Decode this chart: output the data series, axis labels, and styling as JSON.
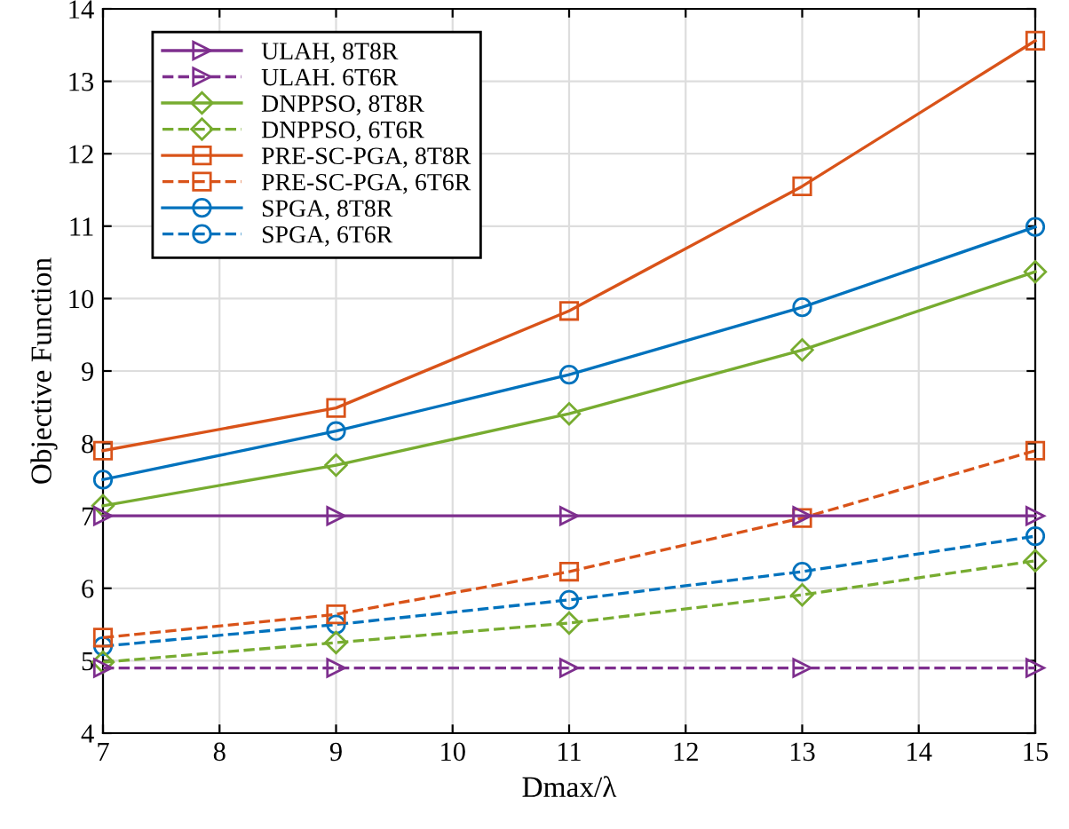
{
  "chart_data": {
    "type": "line",
    "xlabel": "Dmax/λ",
    "ylabel": "Objective Function",
    "x": [
      7,
      9,
      11,
      13,
      15
    ],
    "xlim": [
      7,
      15
    ],
    "xticks": [
      7,
      8,
      9,
      10,
      11,
      12,
      13,
      14,
      15
    ],
    "ylim": [
      4,
      14
    ],
    "yticks": [
      4,
      5,
      6,
      7,
      8,
      9,
      10,
      11,
      12,
      13,
      14
    ],
    "grid": true,
    "legend": "top left",
    "series": [
      {
        "name": "ULAH, 8T8R",
        "color": "#7e2f8e",
        "marker": "triangle",
        "line_style": "solid",
        "values": [
          7.0,
          7.0,
          7.0,
          7.0,
          7.0
        ]
      },
      {
        "name": "ULAH. 6T6R",
        "color": "#7e2f8e",
        "marker": "triangle",
        "line_style": "dashed",
        "values": [
          4.9,
          4.9,
          4.9,
          4.9,
          4.9
        ]
      },
      {
        "name": "DNPPSO, 8T8R",
        "color": "#77ac30",
        "marker": "diamond",
        "line_style": "solid",
        "values": [
          7.14,
          7.7,
          8.41,
          9.29,
          10.37
        ]
      },
      {
        "name": "DNPPSO, 6T6R",
        "color": "#77ac30",
        "marker": "diamond",
        "line_style": "dashed",
        "values": [
          4.98,
          5.25,
          5.52,
          5.91,
          6.38
        ]
      },
      {
        "name": "PRE-SC-PGA, 8T8R",
        "color": "#d95319",
        "marker": "square",
        "line_style": "solid",
        "values": [
          7.9,
          8.49,
          9.83,
          11.55,
          13.56
        ]
      },
      {
        "name": "PRE-SC-PGA, 6T6R",
        "color": "#d95319",
        "marker": "square",
        "line_style": "dashed",
        "values": [
          5.32,
          5.64,
          6.23,
          6.97,
          7.9
        ]
      },
      {
        "name": "SPGA, 8T8R",
        "color": "#0072bd",
        "marker": "circle",
        "line_style": "solid",
        "values": [
          7.5,
          8.17,
          8.95,
          9.88,
          10.99
        ]
      },
      {
        "name": "SPGA, 6T6R",
        "color": "#0072bd",
        "marker": "circle",
        "line_style": "dashed",
        "values": [
          5.2,
          5.5,
          5.84,
          6.23,
          6.72
        ]
      }
    ]
  }
}
